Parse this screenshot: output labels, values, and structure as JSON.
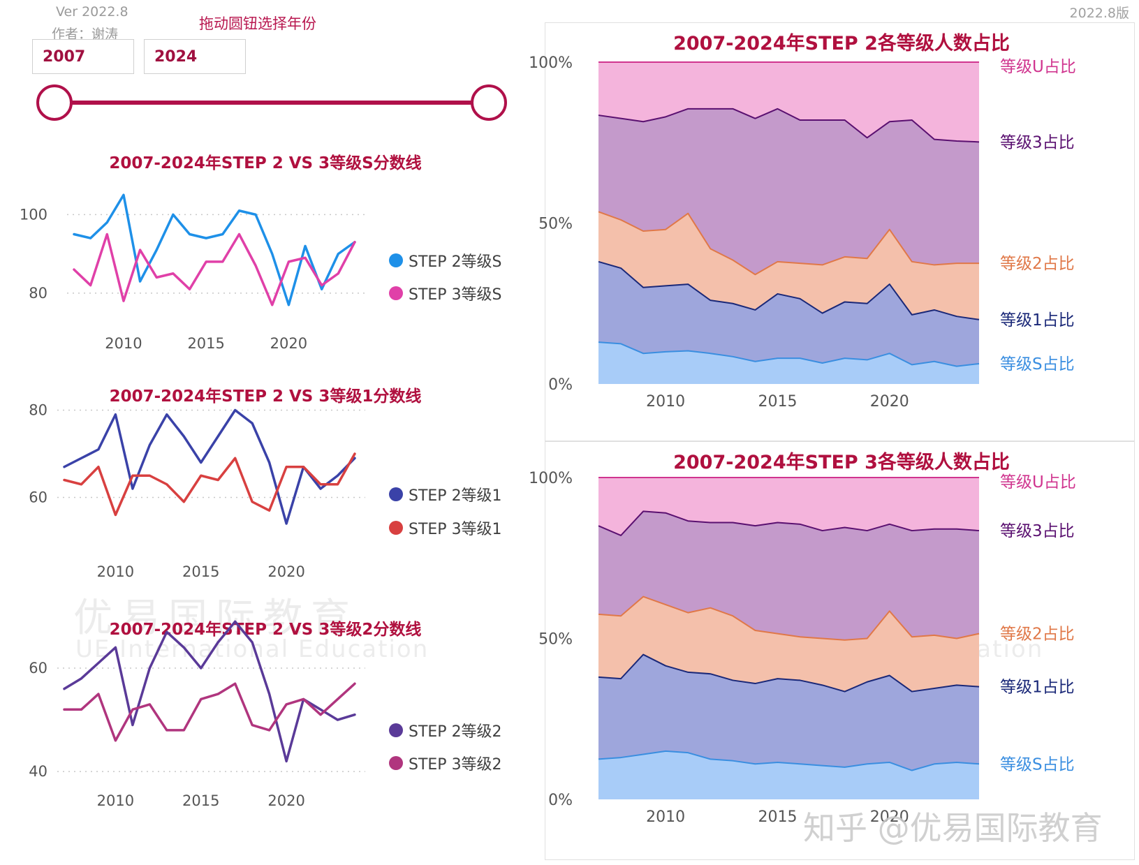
{
  "header": {
    "version": "Ver 2022.8",
    "author": "作者：谢涛",
    "slider_title": "拖动圆钮选择年份",
    "start_year": "2007",
    "end_year": "2024",
    "version_right": "2022.8版"
  },
  "colors": {
    "accent": "#b0103f",
    "slider": "#b0104a"
  },
  "watermark": {
    "cn": "优易国际教育",
    "en": "UE International Education",
    "zhihu": "知乎 @优易国际教育"
  },
  "chart_data": [
    {
      "id": "lineS",
      "type": "line",
      "title": "2007-2024年STEP 2 VS 3等级S分数线",
      "x": [
        2007,
        2008,
        2009,
        2010,
        2011,
        2012,
        2013,
        2014,
        2015,
        2016,
        2017,
        2018,
        2019,
        2020,
        2021,
        2022,
        2023,
        2024
      ],
      "xticks": [
        2010,
        2015,
        2020
      ],
      "ylim": [
        75,
        107
      ],
      "yticks": [
        80,
        100
      ],
      "grid": true,
      "legend": "right",
      "series": [
        {
          "name": "STEP 2等级S",
          "color": "#1e90e8",
          "values": [
            95,
            94,
            98,
            105,
            83,
            91,
            100,
            95,
            94,
            95,
            101,
            100,
            90,
            77,
            92,
            81,
            90,
            93
          ]
        },
        {
          "name": "STEP 3等级S",
          "color": "#e040a8",
          "values": [
            86,
            82,
            95,
            78,
            91,
            84,
            85,
            81,
            88,
            88,
            95,
            87,
            77,
            88,
            89,
            82,
            85,
            93
          ]
        }
      ]
    },
    {
      "id": "line1",
      "type": "line",
      "title": "2007-2024年STEP 2 VS 3等级1分数线",
      "x": [
        2007,
        2008,
        2009,
        2010,
        2011,
        2012,
        2013,
        2014,
        2015,
        2016,
        2017,
        2018,
        2019,
        2020,
        2021,
        2022,
        2023,
        2024
      ],
      "xticks": [
        2010,
        2015,
        2020
      ],
      "ylim": [
        50,
        82
      ],
      "yticks": [
        60,
        80
      ],
      "grid": true,
      "legend": "right",
      "series": [
        {
          "name": "STEP 2等级1",
          "color": "#3a42a8",
          "values": [
            67,
            69,
            71,
            79,
            62,
            72,
            79,
            74,
            68,
            74,
            80,
            77,
            68,
            54,
            67,
            62,
            65,
            69
          ]
        },
        {
          "name": "STEP 3等级1",
          "color": "#d84040",
          "values": [
            64,
            63,
            67,
            56,
            65,
            65,
            63,
            59,
            65,
            64,
            69,
            59,
            57,
            67,
            67,
            63,
            63,
            70
          ]
        }
      ]
    },
    {
      "id": "line2",
      "type": "line",
      "title": "2007-2024年STEP 2 VS 3等级2分数线",
      "x": [
        2007,
        2008,
        2009,
        2010,
        2011,
        2012,
        2013,
        2014,
        2015,
        2016,
        2017,
        2018,
        2019,
        2020,
        2021,
        2022,
        2023,
        2024
      ],
      "xticks": [
        2010,
        2015,
        2020
      ],
      "ylim": [
        38,
        65
      ],
      "yticks": [
        40,
        60
      ],
      "grid": true,
      "legend": "right",
      "series": [
        {
          "name": "STEP 2等级2",
          "color": "#5a3a98",
          "values": [
            56,
            58,
            61,
            64,
            49,
            60,
            67,
            64,
            60,
            65,
            69,
            65,
            55,
            42,
            54,
            52,
            50,
            51
          ]
        },
        {
          "name": "STEP 3等级2",
          "color": "#b0357e",
          "values": [
            52,
            52,
            55,
            46,
            52,
            53,
            48,
            48,
            54,
            55,
            57,
            49,
            48,
            53,
            54,
            51,
            54,
            57
          ]
        }
      ]
    },
    {
      "id": "area2",
      "type": "area",
      "stacked": true,
      "title": "2007-2024年STEP 2各等级人数占比",
      "x": [
        2007,
        2008,
        2009,
        2010,
        2011,
        2012,
        2013,
        2014,
        2015,
        2016,
        2017,
        2018,
        2019,
        2020,
        2021,
        2022,
        2023,
        2024
      ],
      "xticks": [
        2010,
        2015,
        2020
      ],
      "ylim": [
        0,
        100
      ],
      "yticks": [
        "0%",
        "50%",
        "100%"
      ],
      "legend": "right",
      "series": [
        {
          "name": "等级S占比",
          "fill": "#a8ccf8",
          "line": "#3a8ee0",
          "label_color": "#3a8ee0",
          "cumulative": [
            13,
            12.5,
            9.5,
            10,
            10.3,
            9.5,
            8.5,
            7,
            8,
            8,
            6.5,
            8,
            7.5,
            9.5,
            6,
            7,
            5.5,
            6.3
          ]
        },
        {
          "name": "等级1占比",
          "fill": "#9ea6dc",
          "line": "#1a2878",
          "label_color": "#1a2878",
          "cumulative": [
            38,
            36,
            30,
            30.5,
            31,
            26,
            25,
            23,
            28,
            26.5,
            22,
            25.5,
            25,
            31,
            21.5,
            23,
            21,
            20
          ]
        },
        {
          "name": "等级2占比",
          "fill": "#f4c0ab",
          "line": "#e07848",
          "label_color": "#e07848",
          "cumulative": [
            53.5,
            51,
            47.5,
            48,
            53,
            42,
            38.5,
            34,
            38,
            37.5,
            37,
            39.5,
            39,
            48,
            38,
            37,
            37.5,
            37.5
          ]
        },
        {
          "name": "等级3占比",
          "fill": "#c49acb",
          "line": "#5a1070",
          "label_color": "#5a1070",
          "cumulative": [
            83.5,
            82.5,
            81.5,
            83,
            85.5,
            85.5,
            85.5,
            82.5,
            85.5,
            82,
            82,
            82,
            76.5,
            81.5,
            82,
            76,
            75.5,
            75.2
          ]
        },
        {
          "name": "等级U占比",
          "fill": "#f4b4dc",
          "line": "#d0358f",
          "label_color": "#d0358f",
          "cumulative": [
            100,
            100,
            100,
            100,
            100,
            100,
            100,
            100,
            100,
            100,
            100,
            100,
            100,
            100,
            100,
            100,
            100,
            100
          ]
        }
      ]
    },
    {
      "id": "area3",
      "type": "area",
      "stacked": true,
      "title": "2007-2024年STEP 3各等级人数占比",
      "x": [
        2007,
        2008,
        2009,
        2010,
        2011,
        2012,
        2013,
        2014,
        2015,
        2016,
        2017,
        2018,
        2019,
        2020,
        2021,
        2022,
        2023,
        2024
      ],
      "xticks": [
        2010,
        2015,
        2020
      ],
      "ylim": [
        0,
        100
      ],
      "yticks": [
        "0%",
        "50%",
        "100%"
      ],
      "legend": "right",
      "series": [
        {
          "name": "等级S占比",
          "fill": "#a8ccf8",
          "line": "#3a8ee0",
          "label_color": "#3a8ee0",
          "cumulative": [
            12.5,
            13,
            14,
            15,
            14.5,
            12.5,
            12,
            11,
            11.5,
            11,
            10.5,
            10,
            11,
            11.5,
            9,
            11,
            11.5,
            11
          ]
        },
        {
          "name": "等级1占比",
          "fill": "#9ea6dc",
          "line": "#1a2878",
          "label_color": "#1a2878",
          "cumulative": [
            38,
            37.5,
            45,
            41.5,
            39.5,
            39,
            37,
            36,
            37.5,
            37,
            35.5,
            33.5,
            36.5,
            38.5,
            33.5,
            34.5,
            35.5,
            35
          ]
        },
        {
          "name": "等级2占比",
          "fill": "#f4c0ab",
          "line": "#e07848",
          "label_color": "#e07848",
          "cumulative": [
            57.5,
            57,
            63,
            60.5,
            58,
            59.5,
            57,
            52.5,
            51.5,
            50.5,
            50,
            49.5,
            50,
            58.5,
            50.5,
            51,
            50,
            51.5
          ]
        },
        {
          "name": "等级3占比",
          "fill": "#c49acb",
          "line": "#5a1070",
          "label_color": "#5a1070",
          "cumulative": [
            85,
            82,
            89.5,
            89,
            86.5,
            86,
            86,
            85,
            86,
            85.5,
            83.5,
            84.5,
            83.5,
            85.5,
            83.5,
            84,
            84,
            83.5
          ]
        },
        {
          "name": "等级U占比",
          "fill": "#f4b4dc",
          "line": "#d0358f",
          "label_color": "#d0358f",
          "cumulative": [
            100,
            100,
            100,
            100,
            100,
            100,
            100,
            100,
            100,
            100,
            100,
            100,
            100,
            100,
            100,
            100,
            100,
            100
          ]
        }
      ]
    }
  ]
}
